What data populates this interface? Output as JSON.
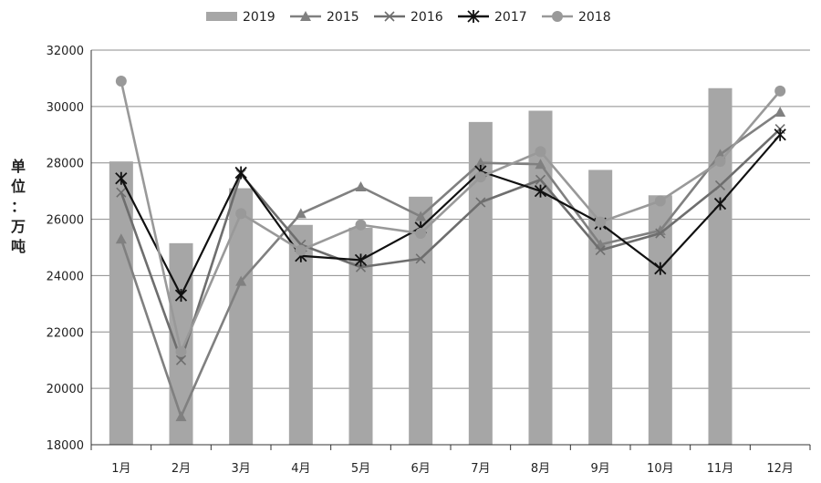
{
  "chart_data": {
    "type": "bar",
    "categories": [
      "1月",
      "2月",
      "3月",
      "4月",
      "5月",
      "6月",
      "7月",
      "8月",
      "9月",
      "10月",
      "11月",
      "12月"
    ],
    "ylabel": "单位：万吨",
    "ylim": [
      18000,
      32000
    ],
    "yticks": [
      18000,
      20000,
      22000,
      24000,
      26000,
      28000,
      30000,
      32000
    ],
    "grid": true,
    "legend_position": "top",
    "series": [
      {
        "name": "2019",
        "kind": "bar",
        "color": "#a6a6a6",
        "values": [
          28050,
          25150,
          27100,
          25800,
          25700,
          26800,
          29450,
          29850,
          27750,
          26850,
          30650,
          null
        ]
      },
      {
        "name": "2015",
        "kind": "line",
        "marker": "triangle",
        "color": "#808080",
        "values": [
          25300,
          19000,
          23800,
          26200,
          27150,
          26100,
          28000,
          27950,
          25100,
          25600,
          28300,
          29800
        ]
      },
      {
        "name": "2016",
        "kind": "line",
        "marker": "x",
        "color": "#6e6e6e",
        "values": [
          26950,
          21000,
          27600,
          25100,
          24300,
          24600,
          26600,
          27400,
          24900,
          25500,
          27200,
          29200
        ]
      },
      {
        "name": "2017",
        "kind": "line",
        "marker": "star",
        "color": "#111111",
        "values": [
          27450,
          23300,
          27650,
          24700,
          24550,
          25700,
          27700,
          27000,
          25850,
          24250,
          26550,
          29000
        ]
      },
      {
        "name": "2018",
        "kind": "line",
        "marker": "circle",
        "color": "#999999",
        "values": [
          30900,
          21300,
          26200,
          24900,
          25800,
          25500,
          27500,
          28400,
          25900,
          26650,
          28050,
          30550
        ]
      }
    ]
  }
}
